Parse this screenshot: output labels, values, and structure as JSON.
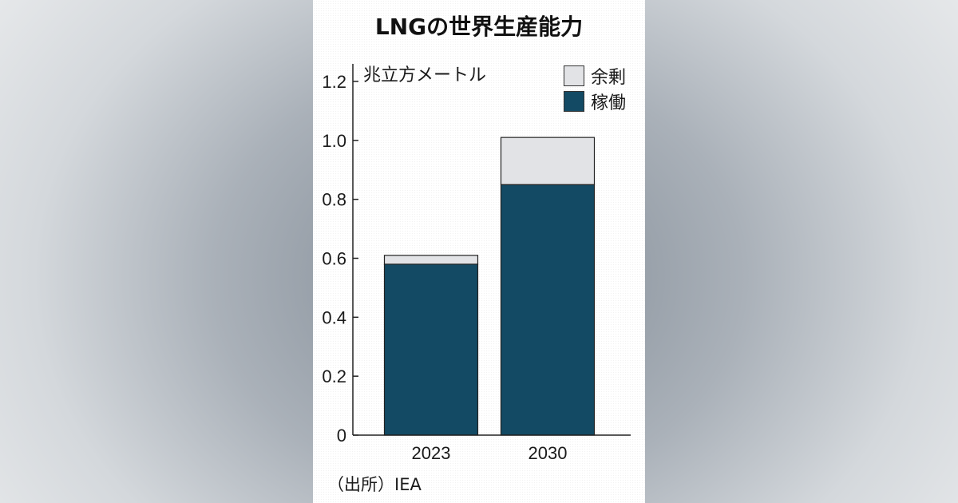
{
  "chart_data": {
    "type": "bar",
    "stacked": true,
    "title": "LNGの世界生産能力",
    "ylabel": "兆立方メートル",
    "categories": [
      "2023",
      "2030"
    ],
    "series": [
      {
        "name": "稼働",
        "color": "#134a64",
        "values": [
          0.58,
          0.85
        ]
      },
      {
        "name": "余剰",
        "color": "#e2e3e6",
        "values": [
          0.03,
          0.16
        ]
      }
    ],
    "ylim": [
      0,
      1.2
    ],
    "yticks": [
      "0",
      "0.2",
      "0.4",
      "0.6",
      "0.8",
      "1.0",
      "1.2"
    ],
    "legend_position": "top-right",
    "grid": false,
    "source": "（出所）IEA"
  }
}
